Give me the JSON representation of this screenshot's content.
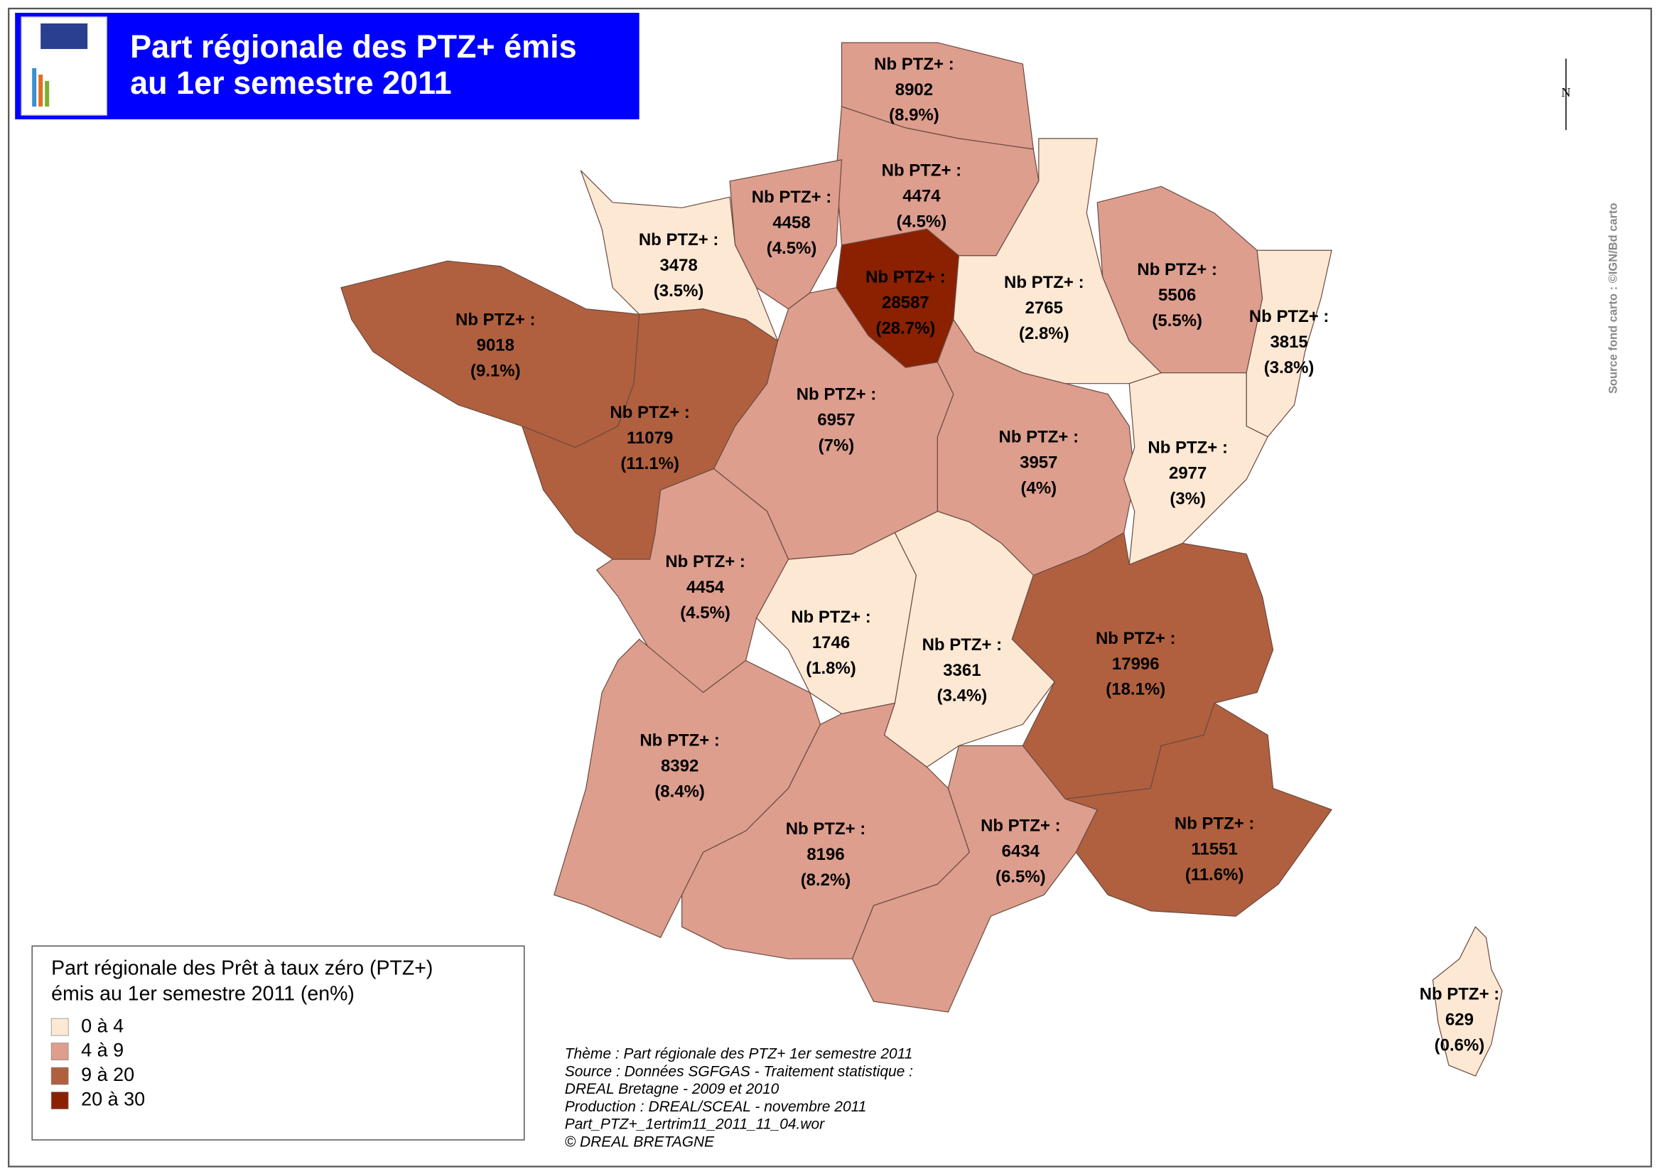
{
  "header": {
    "title_lines": [
      "Part régionale des PTZ+ émis",
      "au 1er semestre 2011"
    ]
  },
  "regions": [
    {
      "label": "Nb PTZ+ :",
      "count": 8902,
      "share": "(8.9%)",
      "color": "#dd9e8e"
    },
    {
      "label": "Nb PTZ+ :",
      "count": 4474,
      "share": "(4.5%)",
      "color": "#dd9e8e"
    },
    {
      "label": "Nb PTZ+ :",
      "count": 4458,
      "share": "(4.5%)",
      "color": "#dd9e8e"
    },
    {
      "label": "Nb PTZ+ :",
      "count": 3478,
      "share": "(3.5%)",
      "color": "#fde8d4"
    },
    {
      "label": "Nb PTZ+ :",
      "count": 28587,
      "share": "(28.7%)",
      "color": "#8b2100"
    },
    {
      "label": "Nb PTZ+ :",
      "count": 2765,
      "share": "(2.8%)",
      "color": "#fde8d4"
    },
    {
      "label": "Nb PTZ+ :",
      "count": 5506,
      "share": "(5.5%)",
      "color": "#dd9e8e"
    },
    {
      "label": "Nb PTZ+ :",
      "count": 3815,
      "share": "(3.8%)",
      "color": "#fde8d4"
    },
    {
      "label": "Nb PTZ+ :",
      "count": 9018,
      "share": "(9.1%)",
      "color": "#b0603f"
    },
    {
      "label": "Nb PTZ+ :",
      "count": 11079,
      "share": "(11.1%)",
      "color": "#b0603f"
    },
    {
      "label": "Nb PTZ+ :",
      "count": 6957,
      "share": "(7%)",
      "color": "#dd9e8e"
    },
    {
      "label": "Nb PTZ+ :",
      "count": 3957,
      "share": "(4%)",
      "color": "#dd9e8e"
    },
    {
      "label": "Nb PTZ+ :",
      "count": 2977,
      "share": "(3%)",
      "color": "#fde8d4"
    },
    {
      "label": "Nb PTZ+ :",
      "count": 4454,
      "share": "(4.5%)",
      "color": "#dd9e8e"
    },
    {
      "label": "Nb PTZ+ :",
      "count": 1746,
      "share": "(1.8%)",
      "color": "#fde8d4"
    },
    {
      "label": "Nb PTZ+ :",
      "count": 3361,
      "share": "(3.4%)",
      "color": "#fde8d4"
    },
    {
      "label": "Nb PTZ+ :",
      "count": 17996,
      "share": "(18.1%)",
      "color": "#b0603f"
    },
    {
      "label": "Nb PTZ+ :",
      "count": 8392,
      "share": "(8.4%)",
      "color": "#dd9e8e"
    },
    {
      "label": "Nb PTZ+ :",
      "count": 8196,
      "share": "(8.2%)",
      "color": "#dd9e8e"
    },
    {
      "label": "Nb PTZ+ :",
      "count": 6434,
      "share": "(6.5%)",
      "color": "#dd9e8e"
    },
    {
      "label": "Nb PTZ+ :",
      "count": 11551,
      "share": "(11.6%)",
      "color": "#b0603f"
    },
    {
      "label": "Nb PTZ+ :",
      "count": 629,
      "share": "(0.6%)",
      "color": "#fde8d4"
    }
  ],
  "legend": {
    "title_lines": [
      "Part régionale des Prêt à taux zéro (PTZ+)",
      "émis au 1er semestre 2011 (en%)"
    ],
    "classes": [
      {
        "label": "0 à 4",
        "color": "#fde8d4"
      },
      {
        "label": "4 à 9",
        "color": "#dd9e8e"
      },
      {
        "label": "9 à 20",
        "color": "#b0603f"
      },
      {
        "label": "20 à 30",
        "color": "#8b2100"
      }
    ]
  },
  "credits": [
    "Thème : Part régionale des PTZ+ 1er semestre 2011",
    "Source : Données SGFGAS - Traitement statistique :",
    "DREAL Bretagne - 2009 et 2010",
    "Production : DREAL/SCEAL - novembre 2011",
    "Part_PTZ+_1ertrim11_2011_11_04.wor",
    "© DREAL BRETAGNE"
  ],
  "side_note": "Source fond carto : ©IGN/Bd carto",
  "north": "N"
}
